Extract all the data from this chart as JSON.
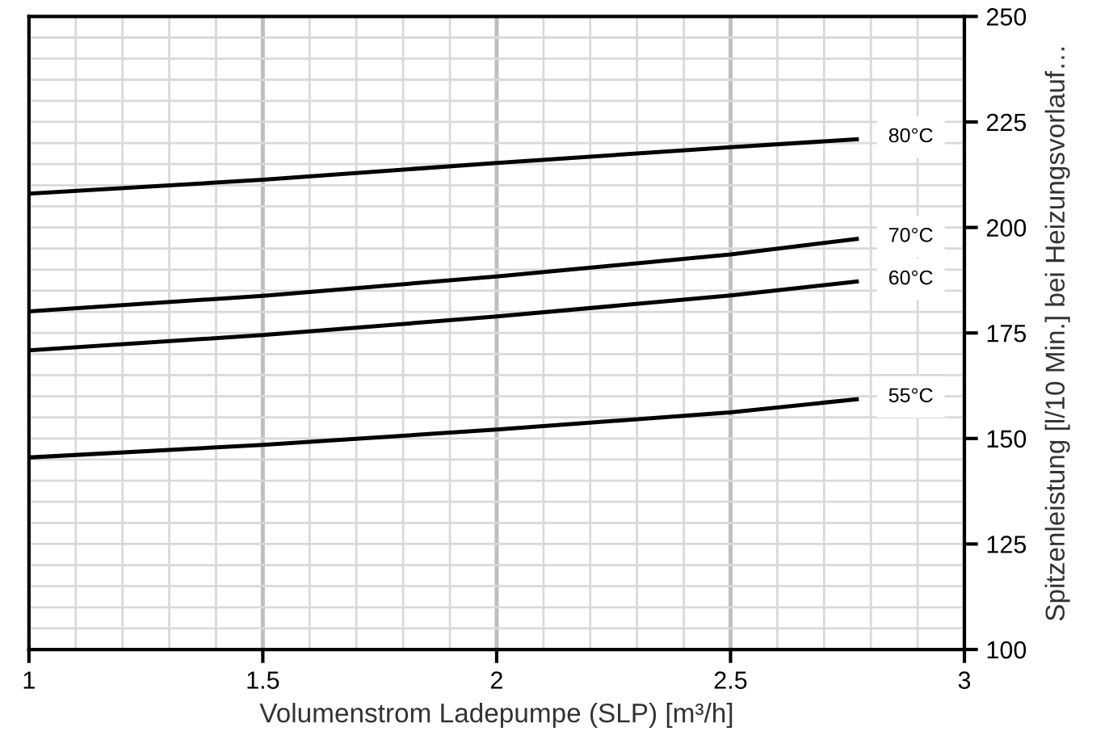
{
  "chart_data": {
    "type": "line",
    "xlabel": "Volumenstrom Ladepumpe (SLP) [m³/h]",
    "ylabel": "Spitzenleistung [l/10 Min.] bei Heizungsvorlauf…",
    "xlim": [
      1,
      3
    ],
    "xticks": [
      1,
      1.5,
      2,
      2.5,
      3
    ],
    "ylim": [
      100,
      250
    ],
    "yticks": [
      100,
      125,
      150,
      175,
      200,
      225,
      250
    ],
    "grid": true,
    "marker": "none",
    "line_style": "solid",
    "series": [
      {
        "name": "80°C",
        "color": "#000000",
        "x": [
          1,
          1.5,
          2,
          2.5,
          2.77
        ],
        "values": [
          208,
          211.3,
          215.3,
          219,
          220.9
        ]
      },
      {
        "name": "70°C",
        "color": "#000000",
        "x": [
          1,
          1.5,
          2,
          2.5,
          2.77
        ],
        "values": [
          180.1,
          183.8,
          188.4,
          193.6,
          197.3
        ]
      },
      {
        "name": "60°C",
        "color": "#000000",
        "x": [
          1,
          1.5,
          2,
          2.5,
          2.77
        ],
        "values": [
          170.9,
          174.5,
          178.9,
          183.9,
          187.2
        ]
      },
      {
        "name": "55°C",
        "color": "#000000",
        "x": [
          1,
          1.5,
          2,
          2.5,
          2.77
        ],
        "values": [
          145.5,
          148.5,
          152.1,
          156.2,
          159.3
        ]
      }
    ]
  }
}
